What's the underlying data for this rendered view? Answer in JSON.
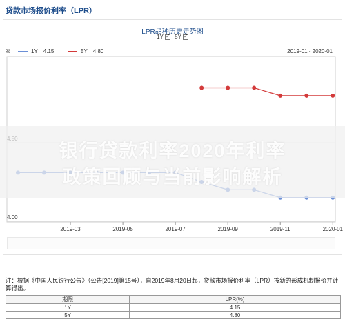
{
  "page": {
    "header_title": "贷款市场报价利率（LPR）",
    "banner_line1": "银行贷款利率2020年利率",
    "banner_line2": "政策回顾与当前影响解析"
  },
  "chart_data": {
    "type": "line",
    "title": "LPR品种历史走势图",
    "toggles": [
      {
        "label": "1Y",
        "checked": true
      },
      {
        "label": "5Y",
        "checked": true
      }
    ],
    "unit": "%",
    "range_label": "2019-01 - 2020-01",
    "x": [
      "2019-01",
      "2019-02",
      "2019-03",
      "2019-04",
      "2019-05",
      "2019-06",
      "2019-07",
      "2019-08",
      "2019-09",
      "2019-10",
      "2019-11",
      "2019-12",
      "2020-01"
    ],
    "x_ticks": [
      "2019-03",
      "2019-05",
      "2019-07",
      "2019-09",
      "2019-11",
      "2020-01"
    ],
    "y_ticks": [
      "4.50",
      "4.00"
    ],
    "ylim": [
      3.995,
      5.05
    ],
    "grid": true,
    "legend_position": "top-left",
    "series": [
      {
        "name": "1Y",
        "legend_value": "4.15",
        "color": "#6b8fd6",
        "values": [
          4.31,
          4.31,
          4.31,
          4.31,
          4.31,
          4.31,
          4.31,
          4.25,
          4.2,
          4.2,
          4.15,
          4.15,
          4.15
        ]
      },
      {
        "name": "5Y",
        "legend_value": "4.80",
        "color": "#d33a3a",
        "values": [
          null,
          null,
          null,
          null,
          null,
          null,
          null,
          4.85,
          4.85,
          4.85,
          4.8,
          4.8,
          4.8
        ]
      }
    ]
  },
  "note": {
    "text": "注：根据《中国人民银行公告》（公告[2019]第15号），自2019年8月20日起，贷款市场报价利率（LPR）按新的形成机制报价并计算得出。"
  },
  "table": {
    "headers": [
      "期限",
      "LPR(%)"
    ],
    "rows": [
      [
        "1Y",
        "4.15"
      ],
      [
        "5Y",
        "4.80"
      ]
    ]
  }
}
